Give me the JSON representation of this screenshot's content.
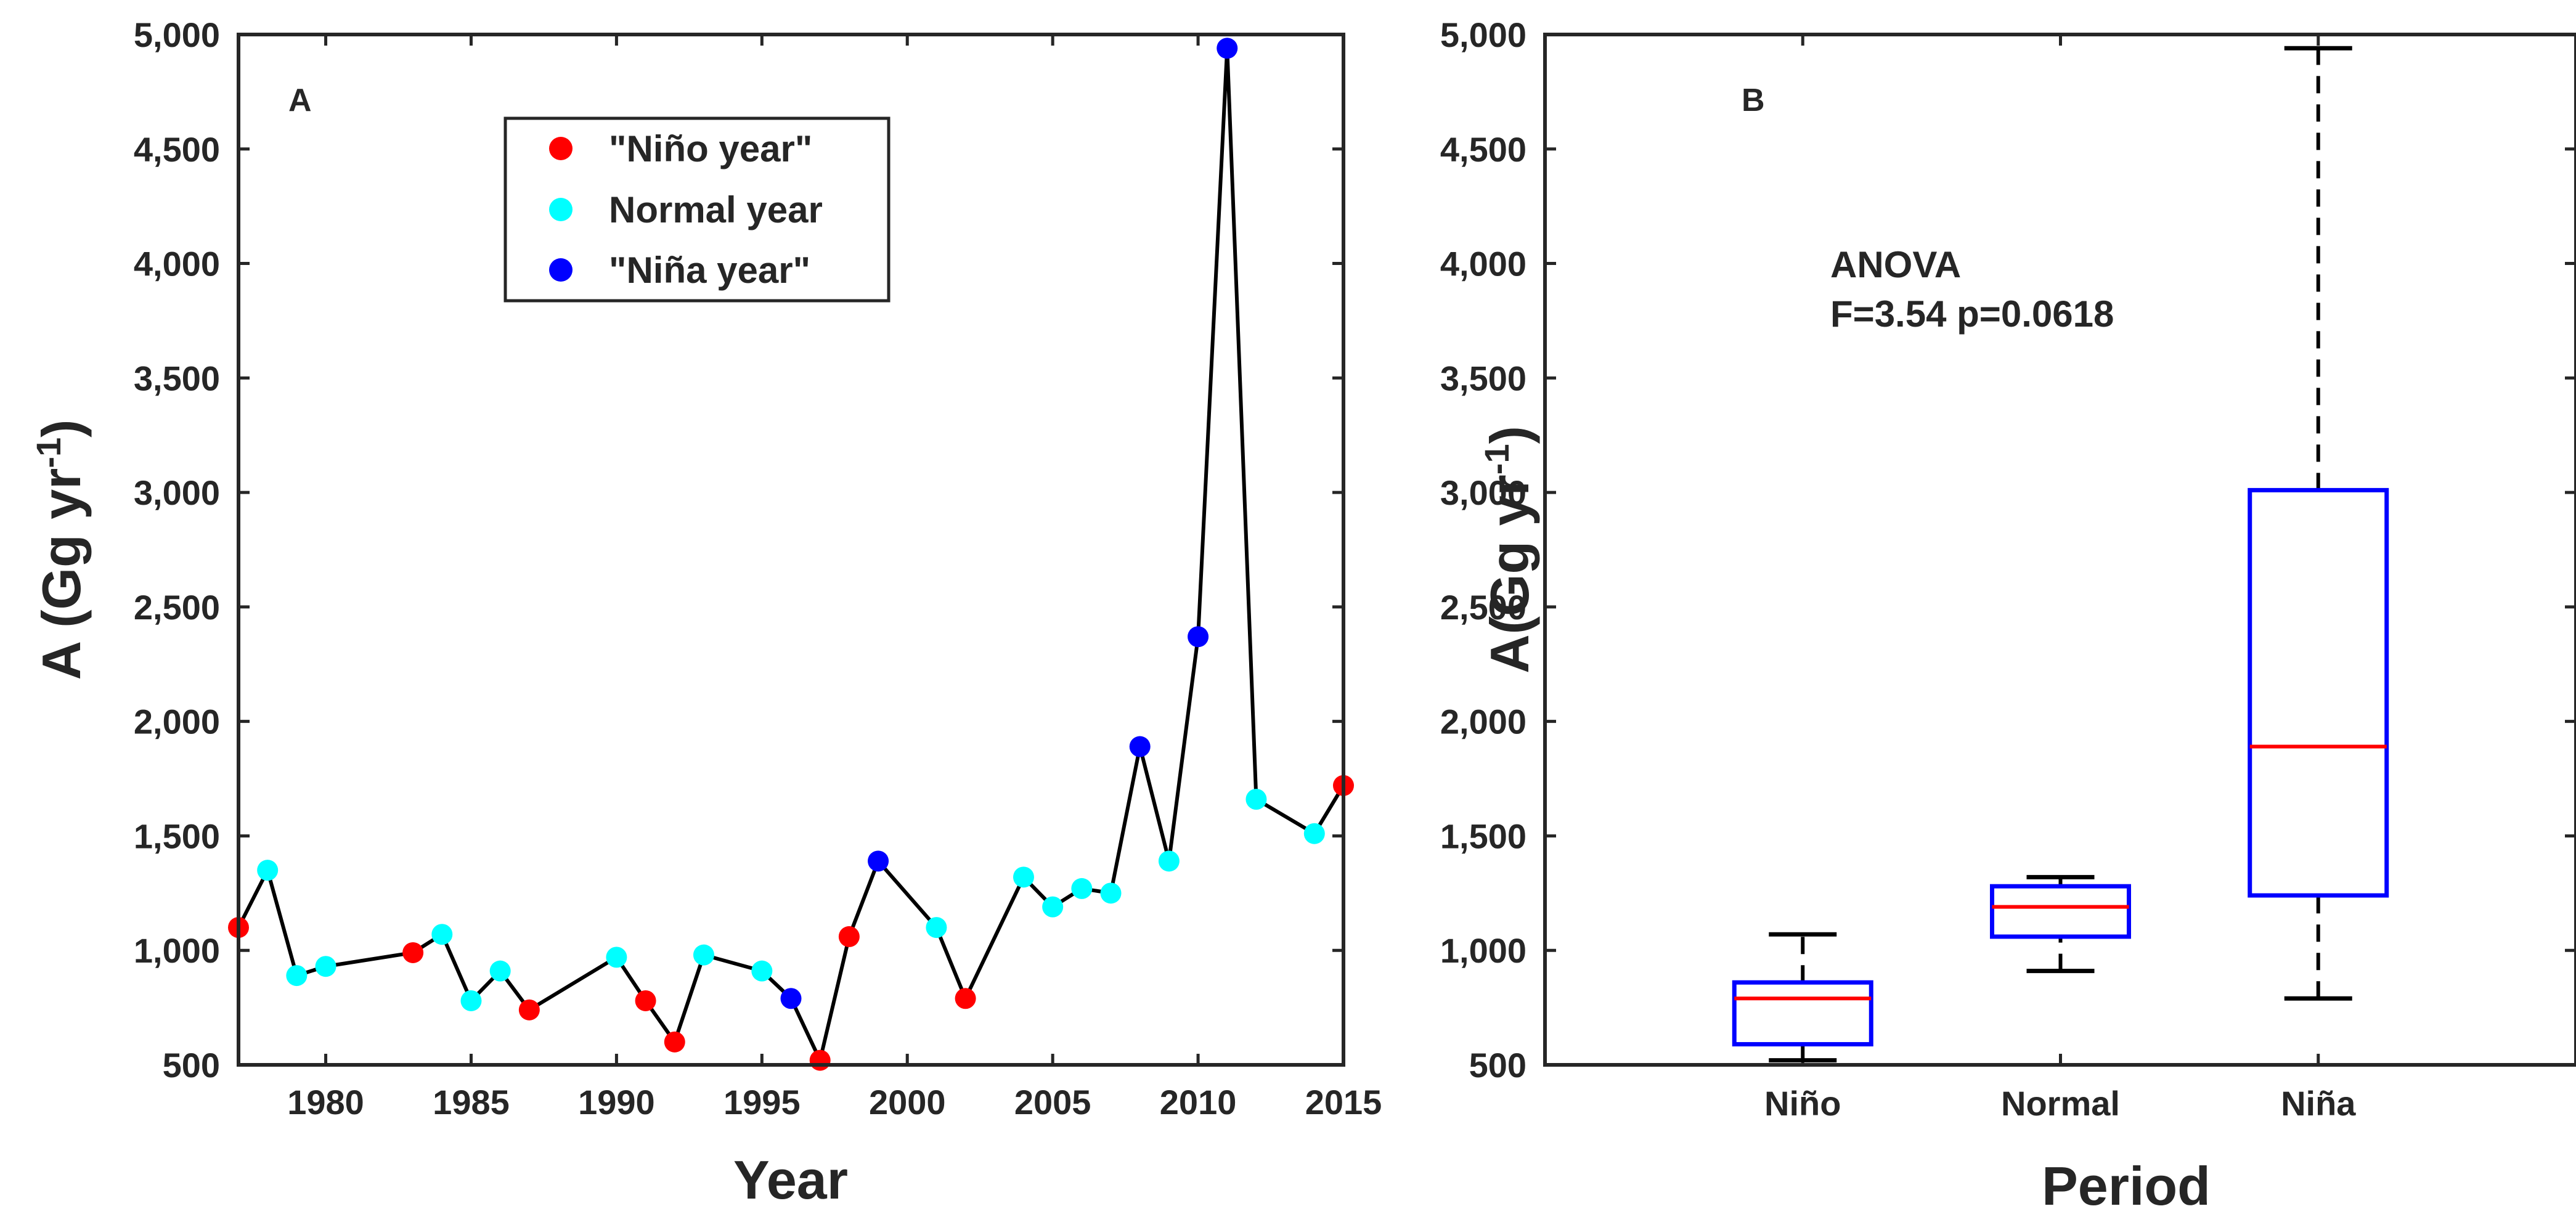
{
  "colors": {
    "nino": "#ff0000",
    "normal": "#00ffff",
    "nina": "#0000ff",
    "line": "#000000",
    "box": "#0000ff",
    "median": "#ff0000",
    "axis": "#262626"
  },
  "chart_data": [
    {
      "type": "line",
      "panel": "A",
      "xlabel": "Year",
      "ylabel_main": "A (Gg yr",
      "ylabel_sup": "-1",
      "ylabel_close": ")",
      "xlim": [
        1977,
        2015
      ],
      "ylim": [
        500,
        5000
      ],
      "xticks": [
        1980,
        1985,
        1990,
        1995,
        2000,
        2005,
        2010,
        2015
      ],
      "xtick_labels": [
        "1980",
        "1985",
        "1990",
        "1995",
        "2000",
        "2005",
        "2010",
        "2015"
      ],
      "yticks": [
        500,
        1000,
        1500,
        2000,
        2500,
        3000,
        3500,
        4000,
        4500,
        5000
      ],
      "ytick_labels": [
        "500",
        "1,000",
        "1,500",
        "2,000",
        "2,500",
        "3,000",
        "3,500",
        "4,000",
        "4,500",
        "5,000"
      ],
      "legend": [
        {
          "label": "\"Niño year\"",
          "category": "nino"
        },
        {
          "label": "Normal year",
          "category": "normal"
        },
        {
          "label": "\"Niña year\"",
          "category": "nina"
        }
      ],
      "legend_position": "top-center",
      "points": [
        {
          "year": 1977,
          "value": 1100,
          "category": "nino"
        },
        {
          "year": 1978,
          "value": 1350,
          "category": "normal"
        },
        {
          "year": 1979,
          "value": 890,
          "category": "normal"
        },
        {
          "year": 1980,
          "value": 930,
          "category": "normal"
        },
        {
          "year": 1983,
          "value": 990,
          "category": "nino"
        },
        {
          "year": 1984,
          "value": 1070,
          "category": "normal"
        },
        {
          "year": 1985,
          "value": 780,
          "category": "normal"
        },
        {
          "year": 1986,
          "value": 910,
          "category": "normal"
        },
        {
          "year": 1987,
          "value": 740,
          "category": "nino"
        },
        {
          "year": 1990,
          "value": 970,
          "category": "normal"
        },
        {
          "year": 1991,
          "value": 780,
          "category": "nino"
        },
        {
          "year": 1992,
          "value": 600,
          "category": "nino"
        },
        {
          "year": 1993,
          "value": 980,
          "category": "normal"
        },
        {
          "year": 1995,
          "value": 910,
          "category": "normal"
        },
        {
          "year": 1996,
          "value": 790,
          "category": "nina"
        },
        {
          "year": 1997,
          "value": 520,
          "category": "nino"
        },
        {
          "year": 1998,
          "value": 1060,
          "category": "nino"
        },
        {
          "year": 1999,
          "value": 1390,
          "category": "nina"
        },
        {
          "year": 2001,
          "value": 1100,
          "category": "normal"
        },
        {
          "year": 2002,
          "value": 790,
          "category": "nino"
        },
        {
          "year": 2004,
          "value": 1320,
          "category": "normal"
        },
        {
          "year": 2005,
          "value": 1190,
          "category": "normal"
        },
        {
          "year": 2006,
          "value": 1270,
          "category": "normal"
        },
        {
          "year": 2007,
          "value": 1250,
          "category": "normal"
        },
        {
          "year": 2008,
          "value": 1890,
          "category": "nina"
        },
        {
          "year": 2009,
          "value": 1390,
          "category": "normal"
        },
        {
          "year": 2010,
          "value": 2370,
          "category": "nina"
        },
        {
          "year": 2011,
          "value": 4940,
          "category": "nina"
        },
        {
          "year": 2012,
          "value": 1660,
          "category": "normal"
        },
        {
          "year": 2014,
          "value": 1510,
          "category": "normal"
        },
        {
          "year": 2015,
          "value": 1720,
          "category": "nino"
        }
      ]
    },
    {
      "type": "box",
      "panel": "B",
      "xlabel": "Period",
      "ylabel_main": "A(Gg yr",
      "ylabel_sup": "-1",
      "ylabel_close": ")",
      "ylim": [
        500,
        5000
      ],
      "yticks": [
        500,
        1000,
        1500,
        2000,
        2500,
        3000,
        3500,
        4000,
        4500,
        5000
      ],
      "ytick_labels": [
        "500",
        "1,000",
        "1,500",
        "2,000",
        "2,500",
        "3,000",
        "3,500",
        "4,000",
        "4,500",
        "5,000"
      ],
      "annotation_title": "ANOVA",
      "annotation_stats": "F=3.54 p=0.0618",
      "categories": [
        "Niño",
        "Normal",
        "Niña"
      ],
      "boxes": [
        {
          "label": "Niño",
          "min": 520,
          "q1": 590,
          "median": 790,
          "q3": 860,
          "max": 1070
        },
        {
          "label": "Normal",
          "min": 910,
          "q1": 1060,
          "median": 1190,
          "q3": 1280,
          "max": 1320
        },
        {
          "label": "Niña",
          "min": 790,
          "q1": 1240,
          "median": 1890,
          "q3": 3010,
          "max": 4940
        }
      ]
    }
  ]
}
